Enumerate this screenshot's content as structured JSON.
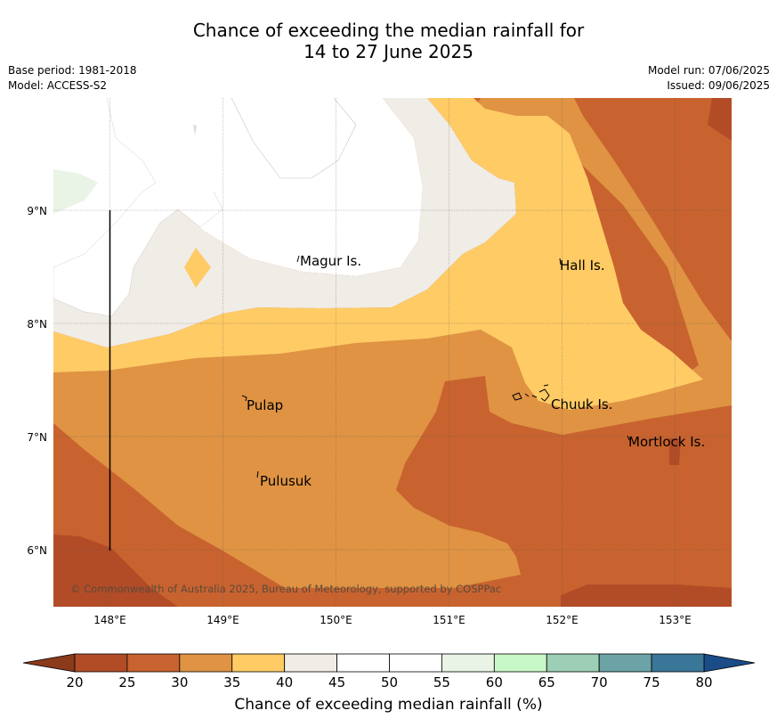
{
  "header": {
    "title_line1": "Chance of exceeding the median rainfall for",
    "title_line2": "14 to 27 June 2025",
    "base_period": "Base period: 1981-2018",
    "model": "Model: ACCESS-S2",
    "model_run": "Model run: 07/06/2025",
    "issued": "Issued: 09/06/2025"
  },
  "map": {
    "lon_ticks": [
      "148°E",
      "149°E",
      "150°E",
      "151°E",
      "152°E",
      "153°E"
    ],
    "lat_ticks": [
      "9°N",
      "8°N",
      "7°N",
      "6°N"
    ],
    "places": [
      {
        "name": "Magur Is."
      },
      {
        "name": "Hall Is."
      },
      {
        "name": "Pulap"
      },
      {
        "name": "Chuuk Is."
      },
      {
        "name": "Mortlock Is."
      },
      {
        "name": "Pulusuk"
      }
    ],
    "copyright": "© Commonwealth of Australia 2025, Bureau of Meteorology, supported by COSPPac"
  },
  "colorbar": {
    "title": "Chance of exceeding median rainfall (%)",
    "ticks": [
      "20",
      "25",
      "30",
      "35",
      "40",
      "45",
      "50",
      "55",
      "60",
      "65",
      "70",
      "75",
      "80"
    ],
    "colors": [
      "#b24c27",
      "#c8632f",
      "#df9343",
      "#fecb65",
      "#f0ece6",
      "#ffffff",
      "#ffffff",
      "#e9f4e6",
      "#c9f8c8",
      "#9ccfb5",
      "#6ba3a7",
      "#3a7697"
    ],
    "under_color": "#8b3a1c",
    "over_color": "#1a4c88"
  }
}
